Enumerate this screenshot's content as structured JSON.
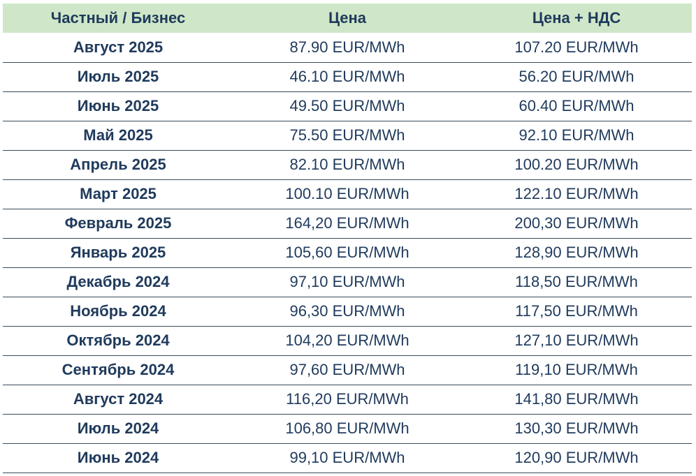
{
  "header": {
    "col1": "Частный / Бизнес",
    "col2": "Цена",
    "col3": "Цена + НДС"
  },
  "rows": [
    {
      "month": "Август 2025",
      "price": "87.90 EUR/MWh",
      "price_vat": "107.20 EUR/MWh"
    },
    {
      "month": "Июль 2025",
      "price": "46.10 EUR/MWh",
      "price_vat": "56.20 EUR/MWh"
    },
    {
      "month": "Июнь 2025",
      "price": "49.50 EUR/MWh",
      "price_vat": "60.40 EUR/MWh"
    },
    {
      "month": "Май 2025",
      "price": "75.50 EUR/MWh",
      "price_vat": "92.10 EUR/MWh"
    },
    {
      "month": "Апрель 2025",
      "price": "82.10 EUR/MWh",
      "price_vat": "100.20 EUR/MWh"
    },
    {
      "month": "Март 2025",
      "price": "100.10 EUR/MWh",
      "price_vat": "122.10 EUR/MWh"
    },
    {
      "month": "Февраль 2025",
      "price": "164,20 EUR/MWh",
      "price_vat": "200,30 EUR/MWh"
    },
    {
      "month": "Январь 2025",
      "price": "105,60 EUR/MWh",
      "price_vat": "128,90 EUR/MWh"
    },
    {
      "month": "Декабрь 2024",
      "price": "97,10 EUR/MWh",
      "price_vat": "118,50 EUR/MWh"
    },
    {
      "month": "Ноябрь 2024",
      "price": "96,30 EUR/MWh",
      "price_vat": "117,50 EUR/MWh"
    },
    {
      "month": "Октябрь 2024",
      "price": "104,20 EUR/MWh",
      "price_vat": "127,10 EUR/MWh"
    },
    {
      "month": "Сентябрь 2024",
      "price": "97,60 EUR/MWh",
      "price_vat": "119,10 EUR/MWh"
    },
    {
      "month": "Август 2024",
      "price": "116,20 EUR/MWh",
      "price_vat": "141,80 EUR/MWh"
    },
    {
      "month": "Июль 2024",
      "price": "106,80 EUR/MWh",
      "price_vat": "130,30 EUR/MWh"
    },
    {
      "month": "Июнь 2024",
      "price": "99,10 EUR/MWh",
      "price_vat": "120,90 EUR/MWh"
    }
  ]
}
